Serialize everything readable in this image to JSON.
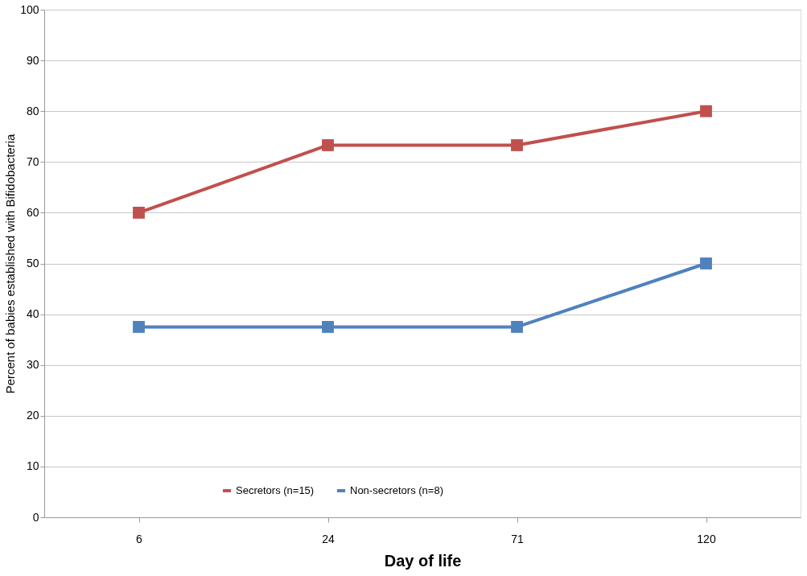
{
  "chart_data": {
    "type": "line",
    "xlabel": "Day of life",
    "ylabel": "Percent of babies established with Bifidobacteria",
    "categories": [
      "6",
      "24",
      "71",
      "120"
    ],
    "series": [
      {
        "name": "Secretors (n=15)",
        "color": "#c0504d",
        "values": [
          60,
          73.3,
          73.3,
          80
        ]
      },
      {
        "name": "Non-secretors (n=8)",
        "color": "#4f81bd",
        "values": [
          37.5,
          37.5,
          37.5,
          50
        ]
      }
    ],
    "ylim": [
      0,
      100
    ],
    "yticks": [
      0,
      10,
      20,
      30,
      40,
      50,
      60,
      70,
      80,
      90,
      100
    ],
    "grid": "y",
    "legend": "bottom",
    "marker": "square",
    "line_style": "solid"
  }
}
